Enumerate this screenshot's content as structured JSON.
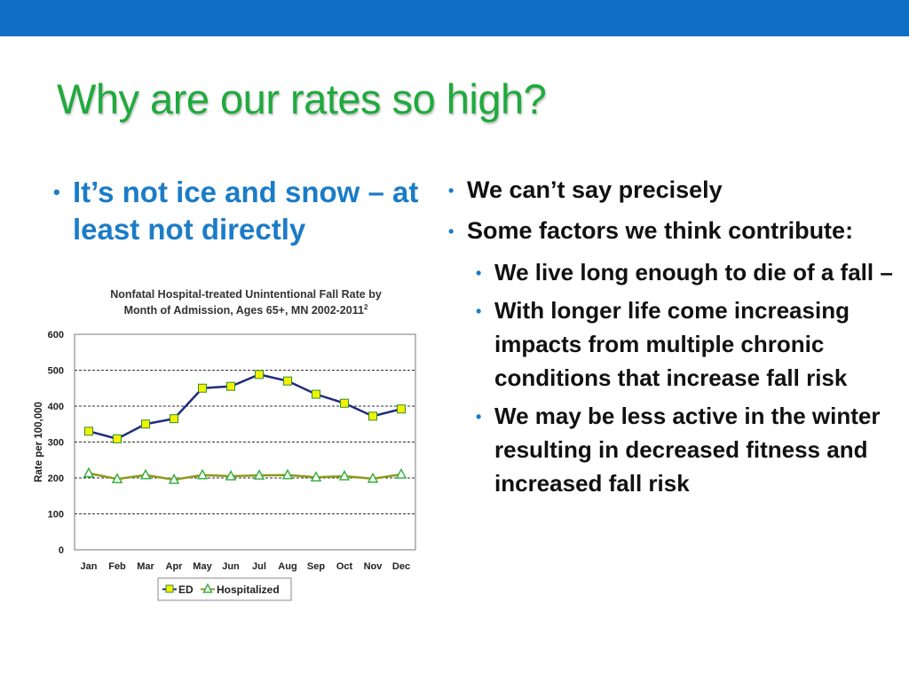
{
  "title": "Why are our rates so high?",
  "left_bullets": [
    "It’s not ice and snow – at least not directly"
  ],
  "right_bullets": [
    {
      "text": "We can’t say precisely",
      "level": 1
    },
    {
      "text": "Some factors we think contribute:",
      "level": 1
    },
    {
      "text": "We live long enough to die of a fall –",
      "level": 2
    },
    {
      "text": "With longer life come increasing impacts from multiple chronic conditions that increase fall risk",
      "level": 2
    },
    {
      "text": "We may be less active in the winter resulting in decreased fitness and increased fall risk",
      "level": 2
    }
  ],
  "colors": {
    "bar": "#0f6fc6",
    "title": "#1faa3d",
    "bullet_left": "#1b7cc7"
  },
  "chart_data": {
    "type": "line",
    "title": "Nonfatal Hospital-treated Unintentional Fall Rate by Month of Admission, Ages 65+, MN 2002-2011",
    "title_sup": "2",
    "ylabel": "Rate per 100,000",
    "xlabel": "",
    "ylim": [
      0,
      600
    ],
    "yticks": [
      "0",
      "100",
      "200",
      "300",
      "400",
      "500",
      "600"
    ],
    "categories": [
      "Jan",
      "Feb",
      "Mar",
      "Apr",
      "May",
      "Jun",
      "Jul",
      "Aug",
      "Sep",
      "Oct",
      "Nov",
      "Dec"
    ],
    "grid": true,
    "legend": "bottom",
    "series": [
      {
        "name": "ED",
        "marker": "square",
        "line_color": "#1f2d7a",
        "marker_fill": "#f2f200",
        "marker_stroke": "#2f8f2f",
        "values": [
          330,
          309,
          350,
          365,
          450,
          455,
          488,
          470,
          433,
          408,
          372,
          392
        ]
      },
      {
        "name": "Hospitalized",
        "marker": "triangle",
        "line_color": "#8c9a1a",
        "marker_fill": "#ffffff",
        "marker_stroke": "#3cb043",
        "values": [
          213,
          197,
          208,
          195,
          208,
          205,
          207,
          208,
          202,
          205,
          198,
          210
        ]
      }
    ]
  }
}
